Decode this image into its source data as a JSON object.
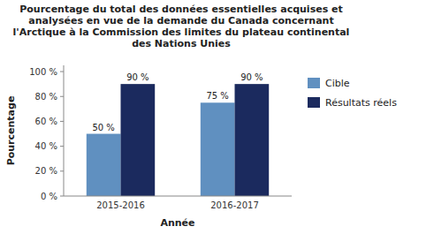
{
  "chart_data": {
    "type": "bar",
    "title": "Pourcentage du total des données essentielles acquises et\nanalysées en vue de la demande du Canada concernant\nl'Arctique à la Commission des limites du plateau continental\ndes Nations Unies",
    "categories": [
      "2015-2016",
      "2016-2017"
    ],
    "series": [
      {
        "name": "Cible",
        "color": "#6090C0",
        "values": [
          50,
          75
        ],
        "value_labels": [
          "50 %",
          "75 %"
        ]
      },
      {
        "name": "Résultats réels",
        "color": "#1B2A5E",
        "values": [
          90,
          90
        ],
        "value_labels": [
          "90 %",
          "90 %"
        ]
      }
    ],
    "xlabel": "Année",
    "ylabel": "Pourcentage",
    "ylim": [
      0,
      105
    ],
    "yticks": [
      {
        "value": 0,
        "label": "0 %"
      },
      {
        "value": 20,
        "label": "20 %"
      },
      {
        "value": 40,
        "label": "40 %"
      },
      {
        "value": 60,
        "label": "60 %"
      },
      {
        "value": 80,
        "label": "80 %"
      },
      {
        "value": 100,
        "label": "100 %"
      }
    ],
    "data_labels": true,
    "legend": "right",
    "grid": false
  }
}
